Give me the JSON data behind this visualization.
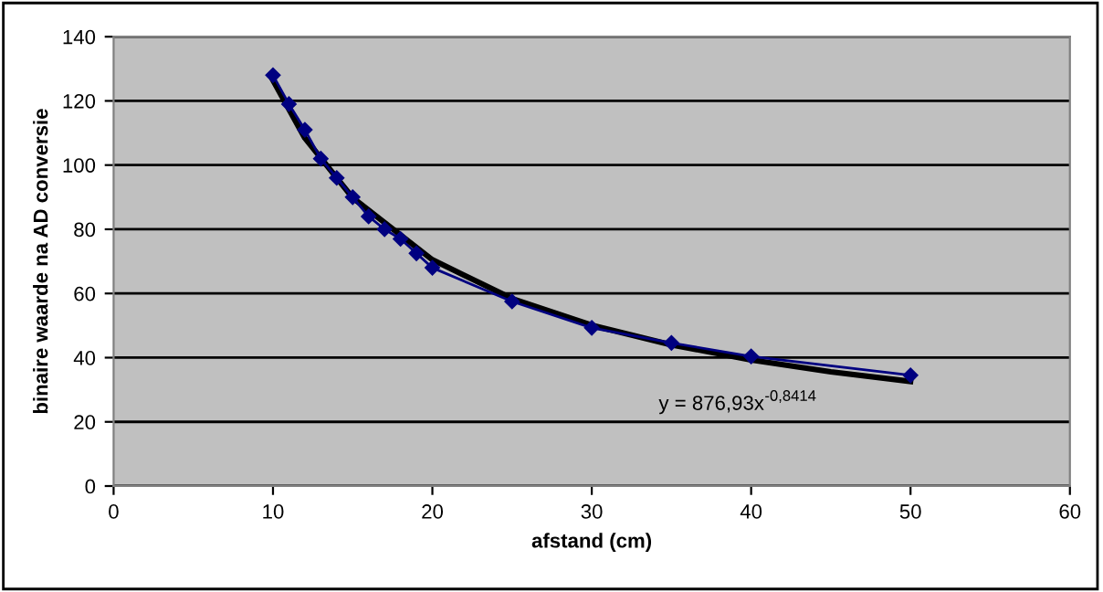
{
  "chart_data": {
    "type": "line",
    "xlabel": "afstand (cm)",
    "ylabel": "binaire waarde na AD conversie",
    "xlim": [
      0,
      60
    ],
    "xticks": [
      0,
      10,
      20,
      30,
      40,
      50,
      60
    ],
    "ylim": [
      0,
      140
    ],
    "yticks": [
      0,
      20,
      40,
      60,
      80,
      100,
      120,
      140
    ],
    "grid": "y",
    "legend": false,
    "series": [
      {
        "color": "#000080",
        "marker": "diamond",
        "x": [
          10,
          11,
          12,
          13,
          14,
          15,
          16,
          17,
          18,
          19,
          20,
          25,
          30,
          35,
          40,
          50
        ],
        "values": [
          128,
          119,
          111,
          102,
          96,
          90,
          84,
          80,
          77,
          72.5,
          68,
          57.5,
          49.3,
          44.6,
          40.4,
          34.5
        ]
      },
      {
        "type": "line",
        "color": "#000000",
        "marker": "none",
        "x": [
          10,
          12,
          15,
          20,
          25,
          30,
          35,
          40,
          45,
          50
        ],
        "values": [
          126.4,
          108.4,
          89.8,
          70.5,
          58.4,
          50.1,
          44.0,
          39.3,
          35.6,
          32.6
        ]
      }
    ],
    "annotations": [
      "y = 876,93x$^{-0,8414}$"
    ]
  }
}
